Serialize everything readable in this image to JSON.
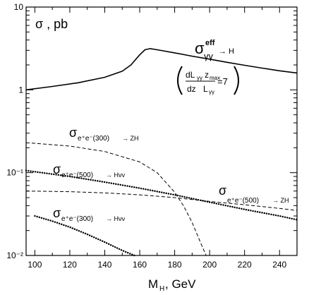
{
  "chart_data": {
    "type": "line",
    "xlabel": "M_H , GeV",
    "ylabel": "σ , pb",
    "xlim": [
      95,
      250
    ],
    "ylim": [
      0.01,
      10
    ],
    "yscale": "log",
    "grid": false,
    "x_ticks": [
      {
        "v": 100,
        "t": "100"
      },
      {
        "v": 120,
        "t": "120"
      },
      {
        "v": 140,
        "t": "140"
      },
      {
        "v": 160,
        "t": "160"
      },
      {
        "v": 180,
        "t": "180"
      },
      {
        "v": 200,
        "t": "200"
      },
      {
        "v": 220,
        "t": "220"
      },
      {
        "v": 240,
        "t": "240"
      }
    ],
    "y_ticks": [
      {
        "v": 0.01,
        "t": "10⁻²"
      },
      {
        "v": 0.1,
        "t": "10⁻¹"
      },
      {
        "v": 1,
        "t": "1"
      },
      {
        "v": 10,
        "t": "10"
      }
    ],
    "series": [
      {
        "name": "σ^eff γγ → H",
        "style": "solid",
        "width": 1.6,
        "x": [
          95,
          110,
          125,
          140,
          150,
          155,
          160,
          163,
          166,
          170,
          180,
          190,
          200,
          210,
          220,
          230,
          240,
          250
        ],
        "y": [
          1.0,
          1.1,
          1.22,
          1.42,
          1.68,
          2.0,
          2.65,
          3.05,
          3.15,
          3.05,
          2.8,
          2.55,
          2.35,
          2.15,
          1.98,
          1.83,
          1.7,
          1.6
        ]
      },
      {
        "name": "σ e⁺e⁻(300) → ZH",
        "style": "dashed",
        "width": 1,
        "x": [
          95,
          120,
          140,
          160,
          170,
          180,
          185,
          190,
          195,
          198
        ],
        "y": [
          0.23,
          0.21,
          0.18,
          0.135,
          0.1,
          0.058,
          0.04,
          0.025,
          0.014,
          0.01
        ]
      },
      {
        "name": "σ e⁺e⁻(500) → Hνν",
        "style": "dotted",
        "width": 2.4,
        "x": [
          95,
          120,
          140,
          160,
          180,
          200,
          220,
          240,
          250
        ],
        "y": [
          0.106,
          0.09,
          0.077,
          0.065,
          0.054,
          0.044,
          0.036,
          0.03,
          0.027
        ]
      },
      {
        "name": "σ e⁺e⁻(500) → ZH",
        "style": "dashed",
        "width": 1,
        "x": [
          95,
          120,
          140,
          160,
          180,
          200,
          220,
          240,
          250
        ],
        "y": [
          0.06,
          0.059,
          0.057,
          0.054,
          0.05,
          0.045,
          0.041,
          0.037,
          0.035
        ]
      },
      {
        "name": "σ e⁺e⁻(300) → Hνν",
        "style": "dotted",
        "width": 2.4,
        "x": [
          100,
          110,
          120,
          130,
          140,
          150,
          158
        ],
        "y": [
          0.03,
          0.026,
          0.022,
          0.018,
          0.0145,
          0.0115,
          0.0098
        ]
      }
    ],
    "annotations": {
      "ylabel_text": "σ , pb",
      "xlabel_main": "M",
      "xlabel_sub": "H",
      "xlabel_unit": ",  GeV",
      "gg_sigma": "σ",
      "gg_sup": "eff",
      "gg_sub": "γγ",
      "gg_arrow": "→ H",
      "formula_num_1": "dL",
      "formula_num_1_sub": "γγ",
      "formula_num_2": "z",
      "formula_num_2_sub": "max",
      "formula_den_1": "dz",
      "formula_den_2": "L",
      "formula_den_2_sub": "γγ",
      "formula_eq": "=7",
      "l1_sigma": "σ",
      "l1_sub": "e⁺e⁻(300)",
      "l1_arrow": "→ ZH",
      "l2_sigma": "σ",
      "l2_sub": "e⁺e⁻(500)",
      "l2_arrow": "→ Hνν",
      "l3_sigma": "σ",
      "l3_sub": "e⁺e⁻(500)",
      "l3_arrow": "→ ZH",
      "l4_sigma": "σ",
      "l4_sub": "e⁺e⁻(300)",
      "l4_arrow": "→ Hνν"
    }
  }
}
